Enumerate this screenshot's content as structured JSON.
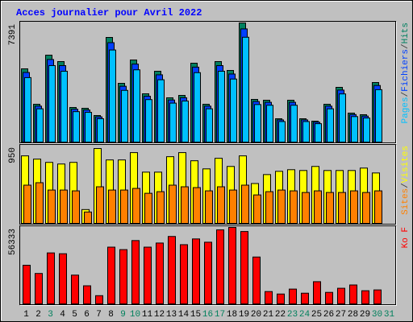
{
  "chart_data": [
    {
      "type": "bar",
      "title": "Acces journalier pour Avril 2022",
      "ylim": [
        0,
        7391
      ],
      "yticks": [
        7391
      ],
      "legend_separator": "/",
      "series": [
        {
          "name": "Pages",
          "color": "#00c0ff",
          "values": [
            4000,
            2065,
            4746,
            4395,
            1889,
            1845,
            1450,
            5713,
            3208,
            4483,
            2636,
            3867,
            2417,
            2548,
            4307,
            2065,
            4395,
            3911,
            6504,
            2329,
            2285,
            1274,
            2285,
            1274,
            1142,
            2065,
            2988,
            1582,
            1494,
            3252,
            null
          ]
        },
        {
          "name": "Fichiers",
          "color": "#0040ff",
          "values": [
            4318,
            2230,
            5123,
            4744,
            2040,
            1992,
            1566,
            6167,
            3463,
            4839,
            2846,
            4174,
            2610,
            2751,
            4649,
            2230,
            4744,
            4222,
            7021,
            2515,
            2467,
            1376,
            2467,
            1376,
            1233,
            2230,
            3226,
            1708,
            1613,
            3510,
            null
          ]
        },
        {
          "name": "Hits",
          "color": "#008060",
          "values": [
            4545,
            2347,
            5393,
            4994,
            2147,
            2097,
            1648,
            6492,
            3645,
            5094,
            2996,
            4394,
            2747,
            2896,
            4894,
            2347,
            4994,
            4444,
            7391,
            2647,
            2597,
            1448,
            2597,
            1448,
            1298,
            2347,
            3396,
            1798,
            1698,
            3695,
            null
          ]
        }
      ]
    },
    {
      "type": "bar",
      "ylim": [
        0,
        950
      ],
      "yticks": [
        950
      ],
      "legend_separator": "/",
      "series": [
        {
          "name": "Sites",
          "color": "#ff8000",
          "values": [
            470,
            500,
            410,
            410,
            400,
            140,
            450,
            410,
            410,
            430,
            370,
            390,
            470,
            450,
            440,
            400,
            450,
            410,
            470,
            350,
            390,
            410,
            400,
            380,
            400,
            380,
            380,
            400,
            380,
            400,
            null
          ]
        },
        {
          "name": "Visites",
          "color": "#ffff00",
          "values": [
            830,
            790,
            750,
            730,
            750,
            170,
            920,
            780,
            780,
            870,
            630,
            630,
            820,
            870,
            770,
            670,
            800,
            700,
            830,
            490,
            600,
            640,
            660,
            650,
            700,
            650,
            650,
            650,
            680,
            620,
            null
          ]
        }
      ]
    },
    {
      "type": "bar",
      "ylim": [
        0,
        56333
      ],
      "yticks": [
        56333
      ],
      "categories": [
        "1",
        "2",
        "3",
        "4",
        "5",
        "6",
        "7",
        "8",
        "9",
        "10",
        "11",
        "12",
        "13",
        "14",
        "15",
        "16",
        "17",
        "18",
        "19",
        "20",
        "21",
        "22",
        "23",
        "24",
        "25",
        "26",
        "27",
        "28",
        "29",
        "30",
        "31"
      ],
      "category_colors": [
        "#000000",
        "#000000",
        "#00805c",
        "#000000",
        "#000000",
        "#000000",
        "#000000",
        "#000000",
        "#00805c",
        "#00805c",
        "#000000",
        "#000000",
        "#000000",
        "#000000",
        "#000000",
        "#00805c",
        "#00805c",
        "#000000",
        "#000000",
        "#000000",
        "#000000",
        "#000000",
        "#00805c",
        "#00805c",
        "#000000",
        "#000000",
        "#000000",
        "#000000",
        "#000000",
        "#00805c",
        "#00805c"
      ],
      "series": [
        {
          "name": "Ko F",
          "color": "#ff0000",
          "values": [
            28470,
            22412,
            37555,
            36950,
            21200,
            13326,
            6057,
            41795,
            39978,
            46641,
            41795,
            44823,
            49670,
            43613,
            47853,
            45430,
            54516,
            56333,
            53304,
            34527,
            9086,
            7269,
            10903,
            7874,
            16355,
            8480,
            11509,
            13932,
            9692,
            10297,
            null
          ]
        }
      ]
    }
  ]
}
